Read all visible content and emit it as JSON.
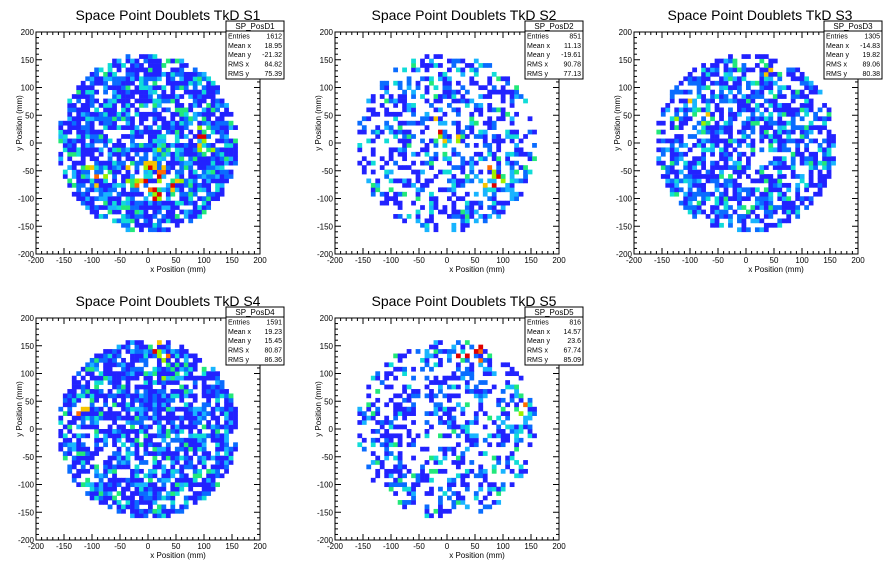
{
  "chart_data": [
    {
      "type": "heatmap",
      "title": "Space Point Doublets TkD S1",
      "xlabel": "x Position (mm)",
      "ylabel": "y Position (mm)",
      "xlim": [
        -200,
        200
      ],
      "ylim": [
        -200,
        200
      ],
      "xticks": [
        "-200",
        "-150",
        "-100",
        "-50",
        "0",
        "50",
        "100",
        "150",
        "200"
      ],
      "yticks": [
        "-200",
        "-150",
        "-100",
        "-50",
        "0",
        "50",
        "100",
        "150",
        "200"
      ],
      "stats": {
        "name": "SP_PosD1",
        "rows": [
          [
            "Entries",
            "1612"
          ],
          [
            "Mean x",
            "18.95"
          ],
          [
            "Mean y",
            "-21.32"
          ],
          [
            "RMS x",
            "84.82"
          ],
          [
            "RMS y",
            "75.39"
          ]
        ]
      },
      "mask_radius": 162,
      "fill": 0.78,
      "seed": 11,
      "hotspots": [
        [
          10,
          -60,
          60,
          0.9
        ],
        [
          100,
          10,
          35,
          0.7
        ],
        [
          -90,
          -60,
          40,
          0.4
        ]
      ]
    },
    {
      "type": "heatmap",
      "title": "Space Point Doublets TkD S2",
      "xlabel": "x Position (mm)",
      "ylabel": "y Position (mm)",
      "xlim": [
        -200,
        200
      ],
      "ylim": [
        -200,
        200
      ],
      "xticks": [
        "-200",
        "-150",
        "-100",
        "-50",
        "0",
        "50",
        "100",
        "150",
        "200"
      ],
      "yticks": [
        "-200",
        "-150",
        "-100",
        "-50",
        "0",
        "50",
        "100",
        "150",
        "200"
      ],
      "stats": {
        "name": "SP_PosD2",
        "rows": [
          [
            "Entries",
            "851"
          ],
          [
            "Mean x",
            "11.13"
          ],
          [
            "Mean y",
            "-19.61"
          ],
          [
            "RMS x",
            "90.78"
          ],
          [
            "RMS y",
            "77.13"
          ]
        ]
      },
      "mask_radius": 162,
      "fill": 0.45,
      "seed": 23,
      "hotspots": [
        [
          0,
          20,
          60,
          0.5
        ],
        [
          90,
          -60,
          45,
          0.6
        ]
      ]
    },
    {
      "type": "heatmap",
      "title": "Space Point Doublets TkD S3",
      "xlabel": "x Position (mm)",
      "ylabel": "y Position (mm)",
      "xlim": [
        -200,
        200
      ],
      "ylim": [
        -200,
        200
      ],
      "xticks": [
        "-200",
        "-150",
        "-100",
        "-50",
        "0",
        "50",
        "100",
        "150",
        "200"
      ],
      "yticks": [
        "-200",
        "-150",
        "-100",
        "-50",
        "0",
        "50",
        "100",
        "150",
        "200"
      ],
      "stats": {
        "name": "SP_PosD3",
        "rows": [
          [
            "Entries",
            "1305"
          ],
          [
            "Mean x",
            "-14.83"
          ],
          [
            "Mean y",
            "19.82"
          ],
          [
            "RMS x",
            "89.06"
          ],
          [
            "RMS y",
            "80.38"
          ]
        ]
      },
      "mask_radius": 162,
      "fill": 0.62,
      "seed": 37,
      "hotspots": [
        [
          -80,
          60,
          60,
          0.5
        ],
        [
          60,
          130,
          40,
          0.5
        ]
      ]
    },
    {
      "type": "heatmap",
      "title": "Space Point Doublets TkD S4",
      "xlabel": "x Position (mm)",
      "ylabel": "y Position (mm)",
      "xlim": [
        -200,
        200
      ],
      "ylim": [
        -200,
        200
      ],
      "xticks": [
        "-200",
        "-150",
        "-100",
        "-50",
        "0",
        "50",
        "100",
        "150",
        "200"
      ],
      "yticks": [
        "-200",
        "-150",
        "-100",
        "-50",
        "0",
        "50",
        "100",
        "150",
        "200"
      ],
      "stats": {
        "name": "SP_PosD4",
        "rows": [
          [
            "Entries",
            "1591"
          ],
          [
            "Mean x",
            "19.23"
          ],
          [
            "Mean y",
            "15.45"
          ],
          [
            "RMS x",
            "80.87"
          ],
          [
            "RMS y",
            "86.36"
          ]
        ]
      },
      "mask_radius": 162,
      "fill": 0.72,
      "seed": 53,
      "hotspots": [
        [
          20,
          130,
          50,
          0.7
        ],
        [
          -120,
          30,
          40,
          0.4
        ]
      ]
    },
    {
      "type": "heatmap",
      "title": "Space Point Doublets TkD S5",
      "xlabel": "x Position (mm)",
      "ylabel": "y Position (mm)",
      "xlim": [
        -200,
        200
      ],
      "ylim": [
        -200,
        200
      ],
      "xticks": [
        "-200",
        "-150",
        "-100",
        "-50",
        "0",
        "50",
        "100",
        "150",
        "200"
      ],
      "yticks": [
        "-200",
        "-150",
        "-100",
        "-50",
        "0",
        "50",
        "100",
        "150",
        "200"
      ],
      "stats": {
        "name": "SP_PosD5",
        "rows": [
          [
            "Entries",
            "816"
          ],
          [
            "Mean x",
            "14.57"
          ],
          [
            "Mean y",
            "23.6"
          ],
          [
            "RMS x",
            "67.74"
          ],
          [
            "RMS y",
            "85.09"
          ]
        ]
      },
      "mask_radius": 162,
      "fill": 0.4,
      "seed": 71,
      "hotspots": [
        [
          40,
          140,
          50,
          0.9
        ],
        [
          130,
          50,
          35,
          0.7
        ]
      ]
    }
  ],
  "colors": {
    "palette": [
      "#2222ff",
      "#0a6cff",
      "#18b4ff",
      "#10dcd8",
      "#22e87a",
      "#9bf000",
      "#f6c400",
      "#ff6a00",
      "#e00000"
    ],
    "axis": "#000000",
    "background": "#ffffff"
  }
}
